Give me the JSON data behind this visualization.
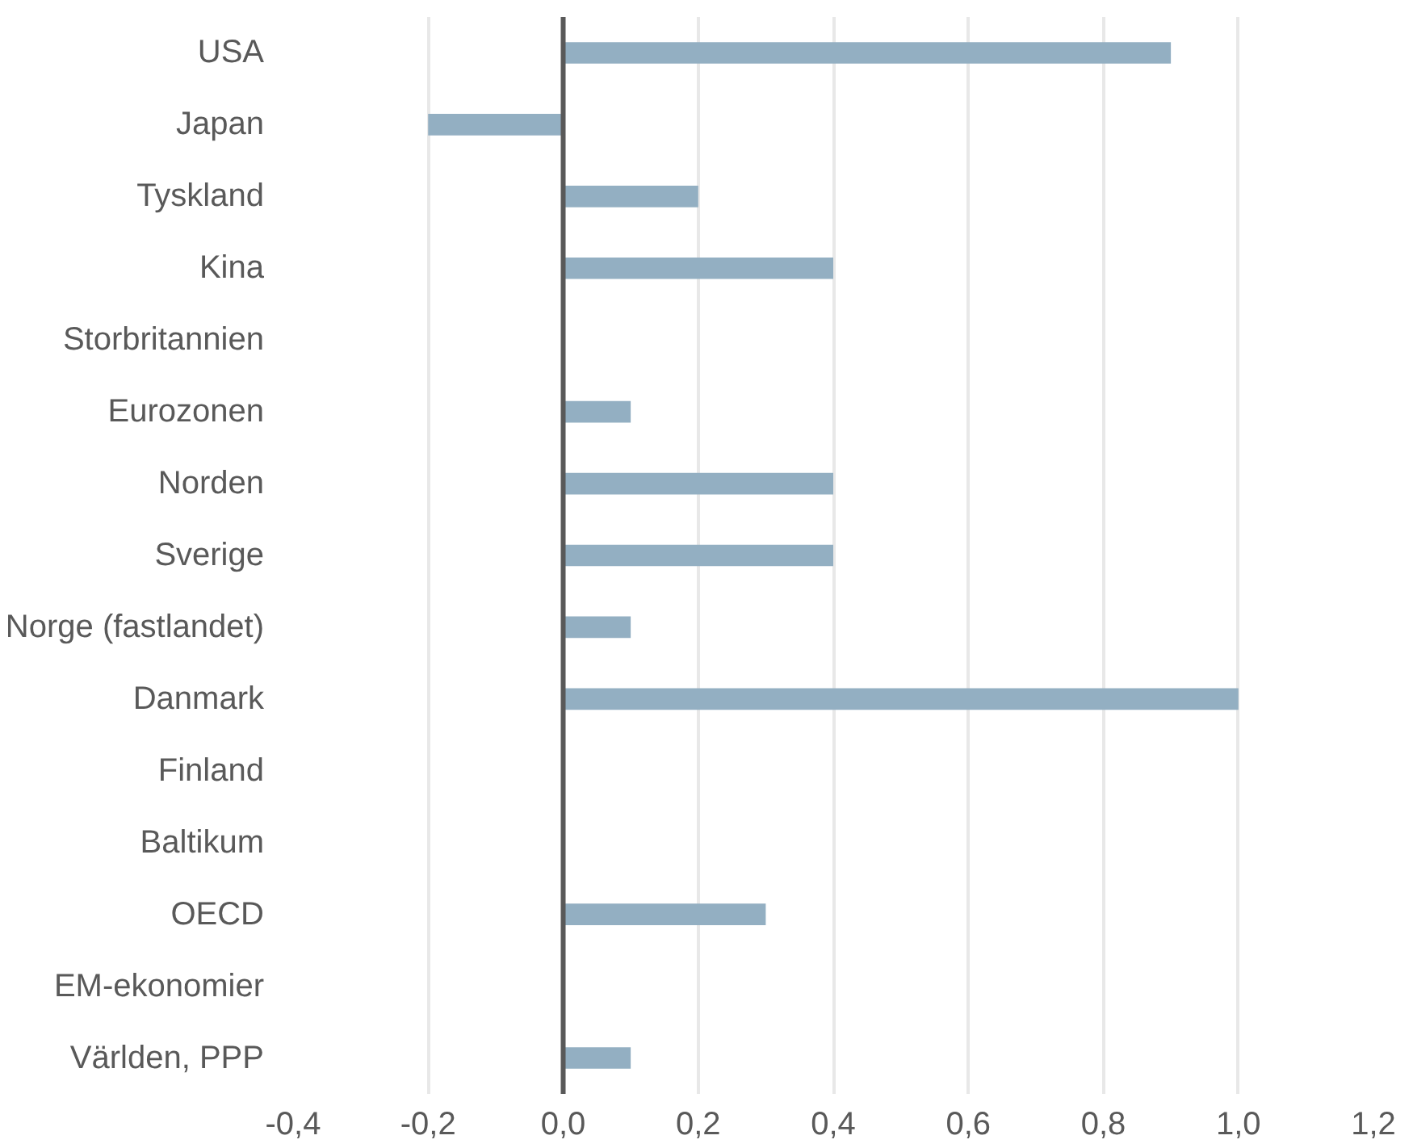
{
  "chart_data": {
    "type": "bar",
    "orientation": "horizontal",
    "categories": [
      "USA",
      "Japan",
      "Tyskland",
      "Kina",
      "Storbritannien",
      "Eurozonen",
      "Norden",
      "Sverige",
      "Norge (fastlandet)",
      "Danmark",
      "Finland",
      "Baltikum",
      "OECD",
      "EM-ekonomier",
      "Världen, PPP"
    ],
    "values": [
      0.9,
      -0.2,
      0.2,
      0.4,
      null,
      0.1,
      0.4,
      0.4,
      0.1,
      1.0,
      null,
      null,
      0.3,
      null,
      0.1
    ],
    "color": "#93afc2",
    "xlim": [
      -0.4,
      1.2
    ],
    "xticks": [
      {
        "value": -0.4,
        "label": "-0,4"
      },
      {
        "value": -0.2,
        "label": "-0,2"
      },
      {
        "value": 0,
        "label": "0,0"
      },
      {
        "value": 0.2,
        "label": "0,2"
      },
      {
        "value": 0.4,
        "label": "0,4"
      },
      {
        "value": 0.6,
        "label": "0,6"
      },
      {
        "value": 0.8,
        "label": "0,8"
      },
      {
        "value": 1.0,
        "label": "1,0"
      },
      {
        "value": 1.2,
        "label": "1,2"
      }
    ],
    "grid": "x",
    "ref_lines": [
      {
        "axis": "x",
        "value": 0,
        "color": "#595959"
      }
    ]
  }
}
